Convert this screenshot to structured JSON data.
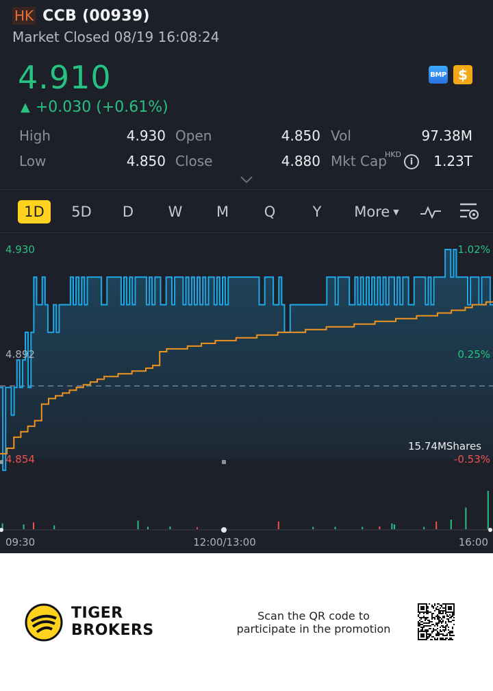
{
  "header": {
    "market_badge": "HK",
    "ticker": "CCB (00939)",
    "status": "Market Closed 08/19 16:08:24"
  },
  "quote": {
    "price": "4.910",
    "change": "+0.030 (+0.61%)",
    "direction": "up",
    "up_color": "#26c281",
    "down_color": "#ef5350"
  },
  "badges": {
    "bmp": "BMP",
    "dollar": "$"
  },
  "stats": {
    "high_label": "High",
    "high_value": "4.930",
    "open_label": "Open",
    "open_value": "4.850",
    "vol_label": "Vol",
    "vol_value": "97.38M",
    "low_label": "Low",
    "low_value": "4.850",
    "close_label": "Close",
    "close_value": "4.880",
    "mktcap_label": "Mkt Cap",
    "mktcap_currency": "HKD",
    "mktcap_value": "1.23T"
  },
  "tabs": [
    {
      "label": "1D",
      "active": true
    },
    {
      "label": "5D"
    },
    {
      "label": "D"
    },
    {
      "label": "W"
    },
    {
      "label": "M"
    },
    {
      "label": "Q"
    },
    {
      "label": "Y"
    },
    {
      "label": "More"
    }
  ],
  "chart_data": {
    "type": "line",
    "price_axis": {
      "top": "4.930",
      "mid": "4.892",
      "bottom": "4.854"
    },
    "pct_axis": {
      "top": "1.02%",
      "mid": "0.25%",
      "bottom": "-0.53%"
    },
    "ylim": [
      4.854,
      4.93
    ],
    "reference_close": 4.88,
    "volume_label": "15.74MShares",
    "time_labels": [
      "09:30",
      "12:00/13:00",
      "16:00"
    ],
    "colors": {
      "price": "#1fa8e8",
      "average": "#f0941f",
      "up": "#26c281",
      "down": "#ef5350",
      "axis_up": "#26c281",
      "axis_down": "#ef5350"
    },
    "series": [
      {
        "name": "price",
        "values": [
          4.88,
          4.85,
          4.88,
          4.88,
          4.87,
          4.88,
          4.89,
          4.88,
          4.89,
          4.9,
          4.88,
          4.9,
          4.92,
          4.91,
          4.91,
          4.92,
          4.91,
          4.9,
          4.9,
          4.91,
          4.9,
          4.91,
          4.91,
          4.91,
          4.91,
          4.92,
          4.91,
          4.92,
          4.91,
          4.92,
          4.91,
          4.92,
          4.92,
          4.92,
          4.92,
          4.92,
          4.91,
          4.91,
          4.92,
          4.92,
          4.92,
          4.92,
          4.92,
          4.91,
          4.92,
          4.91,
          4.92,
          4.91,
          4.92,
          4.92,
          4.92,
          4.92,
          4.91,
          4.92,
          4.91,
          4.92,
          4.92,
          4.91,
          4.91,
          4.92,
          4.92,
          4.91,
          4.92,
          4.92,
          4.92,
          4.91,
          4.92,
          4.91,
          4.92,
          4.91,
          4.92,
          4.91,
          4.92,
          4.91,
          4.92,
          4.92,
          4.91,
          4.92,
          4.91,
          4.92,
          4.91,
          4.92,
          4.92,
          4.92,
          4.92,
          4.92,
          4.92,
          4.92,
          4.92,
          4.92,
          4.92,
          4.92,
          4.91,
          4.91,
          4.92,
          4.92,
          4.92,
          4.91,
          4.91,
          4.92,
          4.91,
          4.9,
          4.9,
          4.91,
          4.91,
          4.91,
          4.91,
          4.91,
          4.91,
          4.91,
          4.91,
          4.91,
          4.91,
          4.91,
          4.91,
          4.91,
          4.92,
          4.92,
          4.92,
          4.91,
          4.92,
          4.92,
          4.92,
          4.92,
          4.91,
          4.91,
          4.92,
          4.91,
          4.92,
          4.91,
          4.92,
          4.91,
          4.92,
          4.91,
          4.92,
          4.91,
          4.92,
          4.91,
          4.92,
          4.92,
          4.91,
          4.92,
          4.91,
          4.92,
          4.92,
          4.91,
          4.91,
          4.92,
          4.92,
          4.92,
          4.92,
          4.91,
          4.92,
          4.91,
          4.92,
          4.92,
          4.92,
          4.92,
          4.93,
          4.93,
          4.92,
          4.93,
          4.92,
          4.92,
          4.92,
          4.92,
          4.91,
          4.92,
          4.92,
          4.92,
          4.91,
          4.92,
          4.92,
          4.92,
          4.91
        ]
      },
      {
        "name": "average",
        "values": [
          4.856,
          4.858,
          4.862,
          4.864,
          4.866,
          4.868,
          4.874,
          4.876,
          4.877,
          4.878,
          4.879,
          4.88,
          4.881,
          4.882,
          4.883,
          4.884,
          4.884,
          4.885,
          4.885,
          4.886,
          4.886,
          4.887,
          4.888,
          4.893,
          4.894,
          4.894,
          4.894,
          4.895,
          4.895,
          4.896,
          4.896,
          4.897,
          4.897,
          4.897,
          4.898,
          4.898,
          4.898,
          4.899,
          4.899,
          4.899,
          4.9,
          4.9,
          4.9,
          4.9,
          4.901,
          4.901,
          4.901,
          4.902,
          4.902,
          4.902,
          4.902,
          4.903,
          4.903,
          4.903,
          4.904,
          4.904,
          4.904,
          4.905,
          4.905,
          4.905,
          4.906,
          4.906,
          4.906,
          4.907,
          4.907,
          4.908,
          4.908,
          4.909,
          4.91,
          4.91,
          4.911
        ]
      }
    ],
    "volume_bars": [
      {
        "x": 0.005,
        "h": 0.12,
        "dir": "up"
      },
      {
        "x": 0.048,
        "h": 0.1,
        "dir": "up"
      },
      {
        "x": 0.068,
        "h": 0.14,
        "dir": "down"
      },
      {
        "x": 0.11,
        "h": 0.08,
        "dir": "up"
      },
      {
        "x": 0.28,
        "h": 0.18,
        "dir": "up"
      },
      {
        "x": 0.3,
        "h": 0.05,
        "dir": "up"
      },
      {
        "x": 0.345,
        "h": 0.06,
        "dir": "up"
      },
      {
        "x": 0.4,
        "h": 0.04,
        "dir": "down"
      },
      {
        "x": 0.565,
        "h": 0.16,
        "dir": "down"
      },
      {
        "x": 0.635,
        "h": 0.05,
        "dir": "up"
      },
      {
        "x": 0.68,
        "h": 0.05,
        "dir": "up"
      },
      {
        "x": 0.735,
        "h": 0.05,
        "dir": "up"
      },
      {
        "x": 0.77,
        "h": 0.06,
        "dir": "down"
      },
      {
        "x": 0.795,
        "h": 0.12,
        "dir": "up"
      },
      {
        "x": 0.8,
        "h": 0.1,
        "dir": "up"
      },
      {
        "x": 0.86,
        "h": 0.05,
        "dir": "up"
      },
      {
        "x": 0.885,
        "h": 0.16,
        "dir": "down"
      },
      {
        "x": 0.915,
        "h": 0.2,
        "dir": "up"
      },
      {
        "x": 0.945,
        "h": 0.45,
        "dir": "up"
      },
      {
        "x": 0.99,
        "h": 0.8,
        "dir": "up"
      }
    ]
  },
  "footer": {
    "brand_line1": "TIGER",
    "brand_line2": "BROKERS",
    "promo_line1": "Scan the QR code to",
    "promo_line2": "participate in the promotion"
  }
}
